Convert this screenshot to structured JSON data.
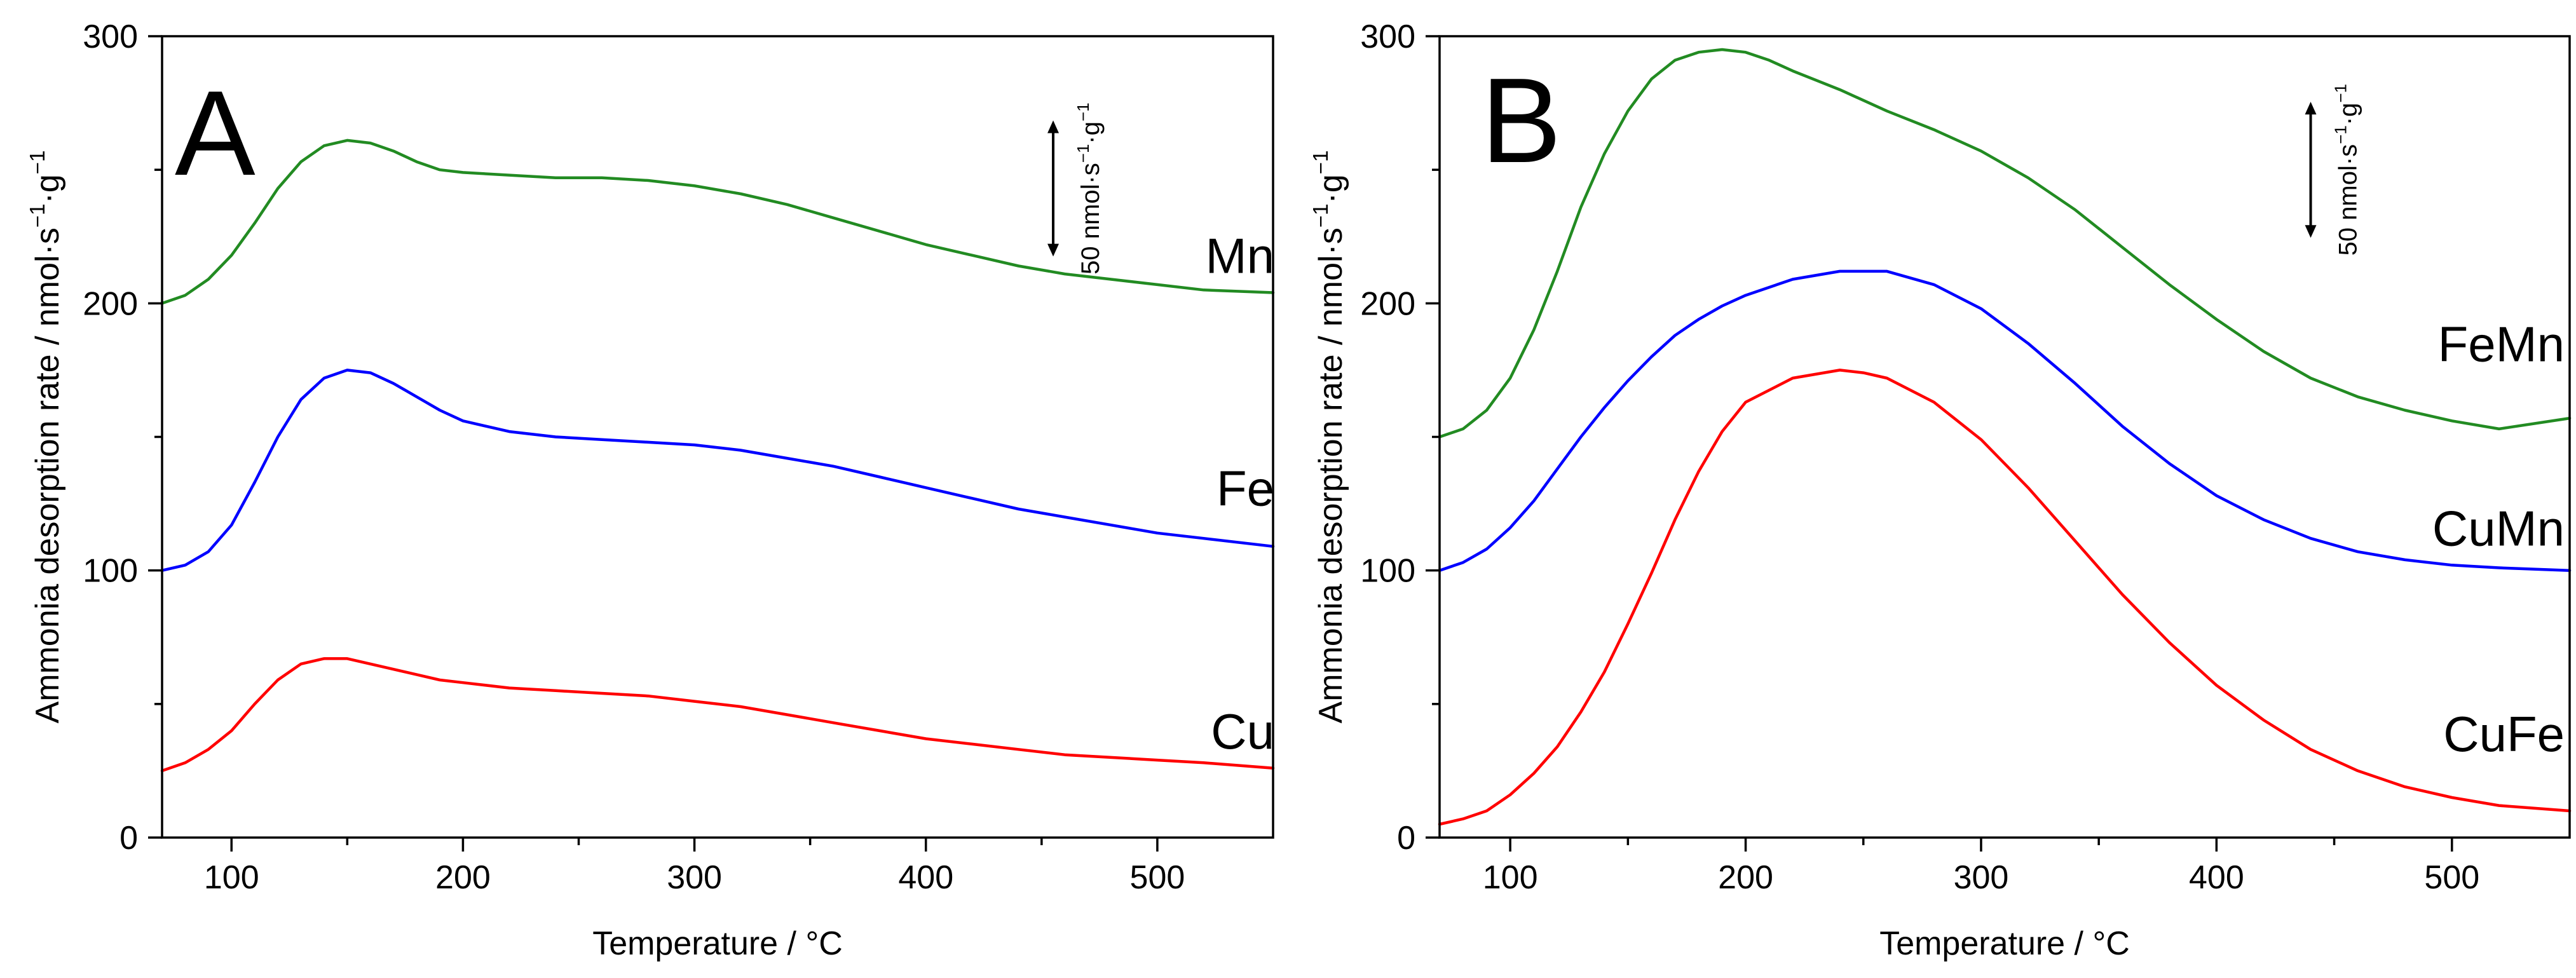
{
  "chart_data": [
    {
      "type": "line",
      "panel_label": "A",
      "xlabel": "Temperature / °C",
      "ylabel_main": "Ammonia desorption rate / nmol·s",
      "ylabel_sup1": "−1",
      "ylabel_mid": "·g",
      "ylabel_sup2": "−1",
      "xlim": [
        70,
        550
      ],
      "ylim": [
        0,
        300
      ],
      "x_ticks": [
        100,
        200,
        300,
        400,
        500
      ],
      "y_ticks": [
        0,
        100,
        200,
        300
      ],
      "x_tick_labels": [
        "100",
        "200",
        "300",
        "400",
        "500"
      ],
      "y_tick_labels": [
        "0",
        "100",
        "200",
        "300"
      ],
      "scale_bar": {
        "value": 50,
        "text_main": "50 nmol·s",
        "text_sup1": "−1",
        "text_mid": "·g",
        "text_sup2": "−1",
        "x": 455,
        "y_from": 218,
        "y_to": 268
      },
      "series": [
        {
          "name": "Mn",
          "color": "#228B22",
          "x": [
            70,
            80,
            90,
            100,
            110,
            120,
            130,
            140,
            150,
            160,
            170,
            180,
            190,
            200,
            220,
            240,
            260,
            280,
            300,
            320,
            340,
            360,
            380,
            400,
            420,
            440,
            460,
            480,
            500,
            520,
            550
          ],
          "y": [
            200,
            203,
            209,
            218,
            230,
            243,
            253,
            259,
            261,
            260,
            257,
            253,
            250,
            249,
            248,
            247,
            247,
            246,
            244,
            241,
            237,
            232,
            227,
            222,
            218,
            214,
            211,
            209,
            207,
            205,
            204
          ],
          "label_xy": [
            496,
            218
          ]
        },
        {
          "name": "Fe",
          "color": "#0000FF",
          "x": [
            70,
            80,
            90,
            100,
            110,
            120,
            130,
            140,
            150,
            160,
            170,
            180,
            190,
            200,
            220,
            240,
            260,
            280,
            300,
            320,
            340,
            360,
            380,
            400,
            420,
            440,
            460,
            480,
            500,
            520,
            550
          ],
          "y": [
            100,
            102,
            107,
            117,
            133,
            150,
            164,
            172,
            175,
            174,
            170,
            165,
            160,
            156,
            152,
            150,
            149,
            148,
            147,
            145,
            142,
            139,
            135,
            131,
            127,
            123,
            120,
            117,
            114,
            112,
            109
          ],
          "label_xy": [
            496,
            131
          ]
        },
        {
          "name": "Cu",
          "color": "#FF0000",
          "x": [
            70,
            80,
            90,
            100,
            110,
            120,
            130,
            140,
            150,
            160,
            170,
            180,
            190,
            200,
            220,
            240,
            260,
            280,
            300,
            320,
            340,
            360,
            380,
            400,
            420,
            440,
            460,
            480,
            500,
            520,
            550
          ],
          "y": [
            25,
            28,
            33,
            40,
            50,
            59,
            65,
            67,
            67,
            65,
            63,
            61,
            59,
            58,
            56,
            55,
            54,
            53,
            51,
            49,
            46,
            43,
            40,
            37,
            35,
            33,
            31,
            30,
            29,
            28,
            26
          ],
          "label_xy": [
            496,
            40
          ]
        }
      ]
    },
    {
      "type": "line",
      "panel_label": "B",
      "xlabel": "Temperature / °C",
      "ylabel_main": "Ammonia desorption rate / nmol·s",
      "ylabel_sup1": "−1",
      "ylabel_mid": "·g",
      "ylabel_sup2": "−1",
      "xlim": [
        70,
        550
      ],
      "ylim": [
        0,
        300
      ],
      "x_ticks": [
        100,
        200,
        300,
        400,
        500
      ],
      "y_ticks": [
        0,
        100,
        200,
        300
      ],
      "x_tick_labels": [
        "100",
        "200",
        "300",
        "400",
        "500"
      ],
      "y_tick_labels": [
        "0",
        "100",
        "200",
        "300"
      ],
      "scale_bar": {
        "value": 50,
        "text_main": "50 nmol·s",
        "text_sup1": "−1",
        "text_mid": "·g",
        "text_sup2": "−1",
        "x": 440,
        "y_from": 225,
        "y_to": 275
      },
      "series": [
        {
          "name": "FeMn",
          "color": "#228B22",
          "x": [
            70,
            80,
            90,
            100,
            110,
            120,
            130,
            140,
            150,
            160,
            170,
            180,
            190,
            200,
            210,
            220,
            240,
            260,
            280,
            300,
            320,
            340,
            360,
            380,
            400,
            420,
            440,
            460,
            480,
            500,
            520,
            550
          ],
          "y": [
            150,
            153,
            160,
            172,
            190,
            212,
            236,
            256,
            272,
            284,
            291,
            294,
            295,
            294,
            291,
            287,
            280,
            272,
            265,
            257,
            247,
            235,
            221,
            207,
            194,
            182,
            172,
            165,
            160,
            156,
            153,
            157
          ],
          "label_xy": [
            535,
            185
          ]
        },
        {
          "name": "CuMn",
          "color": "#0000FF",
          "x": [
            70,
            80,
            90,
            100,
            110,
            120,
            130,
            140,
            150,
            160,
            170,
            180,
            190,
            200,
            220,
            240,
            260,
            280,
            300,
            320,
            340,
            360,
            380,
            400,
            420,
            440,
            460,
            480,
            500,
            520,
            550
          ],
          "y": [
            100,
            103,
            108,
            116,
            126,
            138,
            150,
            161,
            171,
            180,
            188,
            194,
            199,
            203,
            209,
            212,
            212,
            207,
            198,
            185,
            170,
            154,
            140,
            128,
            119,
            112,
            107,
            104,
            102,
            101,
            100
          ],
          "label_xy": [
            535,
            116
          ]
        },
        {
          "name": "CuFe",
          "color": "#FF0000",
          "x": [
            70,
            80,
            90,
            100,
            110,
            120,
            130,
            140,
            150,
            160,
            170,
            180,
            190,
            200,
            220,
            240,
            250,
            260,
            280,
            300,
            320,
            340,
            360,
            380,
            400,
            420,
            440,
            460,
            480,
            500,
            520,
            550
          ],
          "y": [
            5,
            7,
            10,
            16,
            24,
            34,
            47,
            62,
            80,
            99,
            119,
            137,
            152,
            163,
            172,
            175,
            174,
            172,
            163,
            149,
            131,
            111,
            91,
            73,
            57,
            44,
            33,
            25,
            19,
            15,
            12,
            10
          ],
          "label_xy": [
            535,
            39
          ]
        }
      ]
    }
  ]
}
